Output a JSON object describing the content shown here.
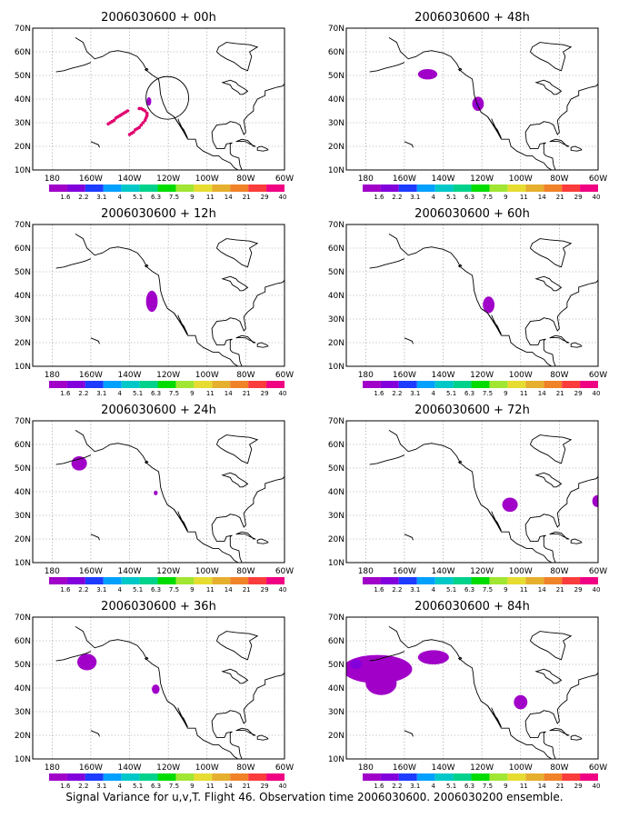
{
  "caption": "Signal Variance for u,v,T. Flight 46. Observation time 2006030600. 2006030200 ensemble.",
  "lon_labels": [
    "180",
    "160W",
    "140W",
    "120W",
    "100W",
    "80W",
    "60W"
  ],
  "lat_labels": [
    "70N",
    "60N",
    "50N",
    "40N",
    "30N",
    "20N",
    "10N"
  ],
  "colorbar": {
    "levels": [
      "1.6",
      "2.2",
      "3.1",
      "4",
      "5.1",
      "6.3",
      "7.5",
      "9",
      "11",
      "14",
      "21",
      "29",
      "40"
    ],
    "colors": [
      "#a000c8",
      "#8200dc",
      "#1e3cff",
      "#00a0ff",
      "#00c8c8",
      "#00d28c",
      "#00dc00",
      "#a0e632",
      "#e6dc32",
      "#e6af2d",
      "#f08228",
      "#fa3c3c",
      "#f00082"
    ]
  },
  "map_extent": {
    "lon_min": -190,
    "lon_max": -60,
    "lat_min": 10,
    "lat_max": 70
  },
  "panels": [
    {
      "title": "2006030600 + 00h",
      "points": [
        [
          -135,
          36
        ],
        [
          -134,
          36
        ],
        [
          -133,
          35.5
        ],
        [
          -132,
          35
        ],
        [
          -131,
          34
        ],
        [
          -131,
          33
        ],
        [
          -131.5,
          32
        ],
        [
          -132,
          31
        ],
        [
          -133,
          30
        ],
        [
          -134,
          29
        ],
        [
          -135,
          28
        ],
        [
          -136,
          27.5
        ],
        [
          -137,
          27
        ],
        [
          -138,
          26
        ],
        [
          -139,
          25.5
        ],
        [
          -140,
          25
        ],
        [
          -141,
          35
        ],
        [
          -142,
          34.5
        ],
        [
          -143,
          34
        ],
        [
          -144,
          33.5
        ],
        [
          -145,
          33
        ],
        [
          -146,
          32.5
        ],
        [
          -147,
          32
        ],
        [
          -148,
          31
        ],
        [
          -149,
          30.5
        ],
        [
          -150,
          30
        ],
        [
          -151,
          29.5
        ]
      ],
      "circle": {
        "lon": -120.5,
        "lat": 40.5,
        "r_deg": 10
      },
      "blobs": [
        {
          "lon": -130,
          "lat": 39,
          "rx": 1.2,
          "ry": 1.8,
          "level": 0
        }
      ]
    },
    {
      "title": "2006030600 + 48h",
      "blobs": [
        {
          "lon": -148,
          "lat": 50.5,
          "rx": 5,
          "ry": 2.2,
          "level": 0
        },
        {
          "lon": -122,
          "lat": 38,
          "rx": 3,
          "ry": 3,
          "level": 0
        },
        {
          "lon": -122.5,
          "lat": 37.5,
          "rx": 1.2,
          "ry": 1.2,
          "level": 1
        }
      ]
    },
    {
      "title": "2006030600 + 12h",
      "blobs": [
        {
          "lon": -128.5,
          "lat": 37.5,
          "rx": 3,
          "ry": 4.5,
          "level": 0
        }
      ]
    },
    {
      "title": "2006030600 + 60h",
      "blobs": [
        {
          "lon": -116.5,
          "lat": 36,
          "rx": 3,
          "ry": 3.5,
          "level": 0
        }
      ]
    },
    {
      "title": "2006030600 + 24h",
      "blobs": [
        {
          "lon": -166,
          "lat": 52,
          "rx": 4,
          "ry": 3,
          "level": 0
        },
        {
          "lon": -126.5,
          "lat": 39.5,
          "rx": 1,
          "ry": 1,
          "level": 0
        }
      ]
    },
    {
      "title": "2006030600 + 72h",
      "blobs": [
        {
          "lon": -105.5,
          "lat": 34.5,
          "rx": 4,
          "ry": 3,
          "level": 0
        },
        {
          "lon": -60.5,
          "lat": 36,
          "rx": 2.5,
          "ry": 2.5,
          "level": 0
        }
      ]
    },
    {
      "title": "2006030600 + 36h",
      "blobs": [
        {
          "lon": -162,
          "lat": 51,
          "rx": 5,
          "ry": 3.5,
          "level": 0
        },
        {
          "lon": -126.5,
          "lat": 39.5,
          "rx": 2,
          "ry": 2,
          "level": 0
        }
      ]
    },
    {
      "title": "2006030600 + 84h",
      "blobs": [
        {
          "lon": -174,
          "lat": 48,
          "rx": 18,
          "ry": 6,
          "level": 0
        },
        {
          "lon": -172,
          "lat": 42,
          "rx": 8,
          "ry": 5,
          "level": 0
        },
        {
          "lon": -145,
          "lat": 53,
          "rx": 8,
          "ry": 3,
          "level": 0
        },
        {
          "lon": -185,
          "lat": 50,
          "rx": 3,
          "ry": 2,
          "level": 1
        },
        {
          "lon": -100,
          "lat": 34,
          "rx": 3.5,
          "ry": 3,
          "level": 0
        }
      ]
    }
  ]
}
